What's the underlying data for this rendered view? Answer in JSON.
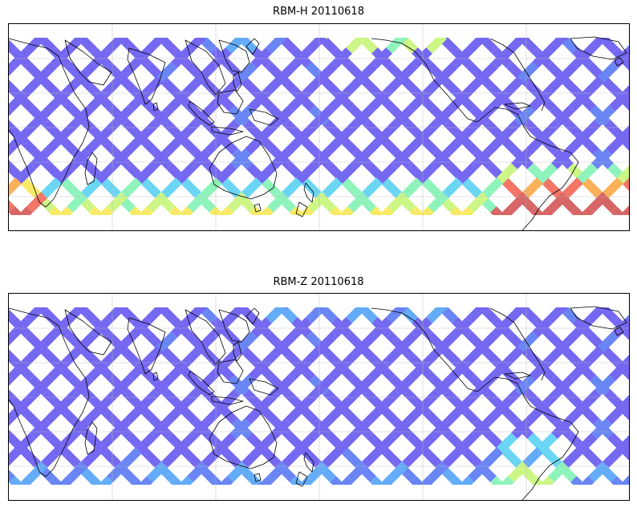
{
  "panels": [
    {
      "id": "top",
      "title": "RBM-H 20110618",
      "variant": "rbm-h"
    },
    {
      "id": "bottom",
      "title": "RBM-Z 20110618",
      "variant": "rbm-z"
    }
  ],
  "colormap": [
    "#6a5cf0",
    "#5d7cf4",
    "#57a6f8",
    "#5fd3f2",
    "#86f3b7",
    "#c8f67c",
    "#f8e95a",
    "#fbab4d",
    "#f26a5a",
    "#d45a5a"
  ],
  "projection": "equirectangular, Pacific-centered",
  "gridlines": true
}
